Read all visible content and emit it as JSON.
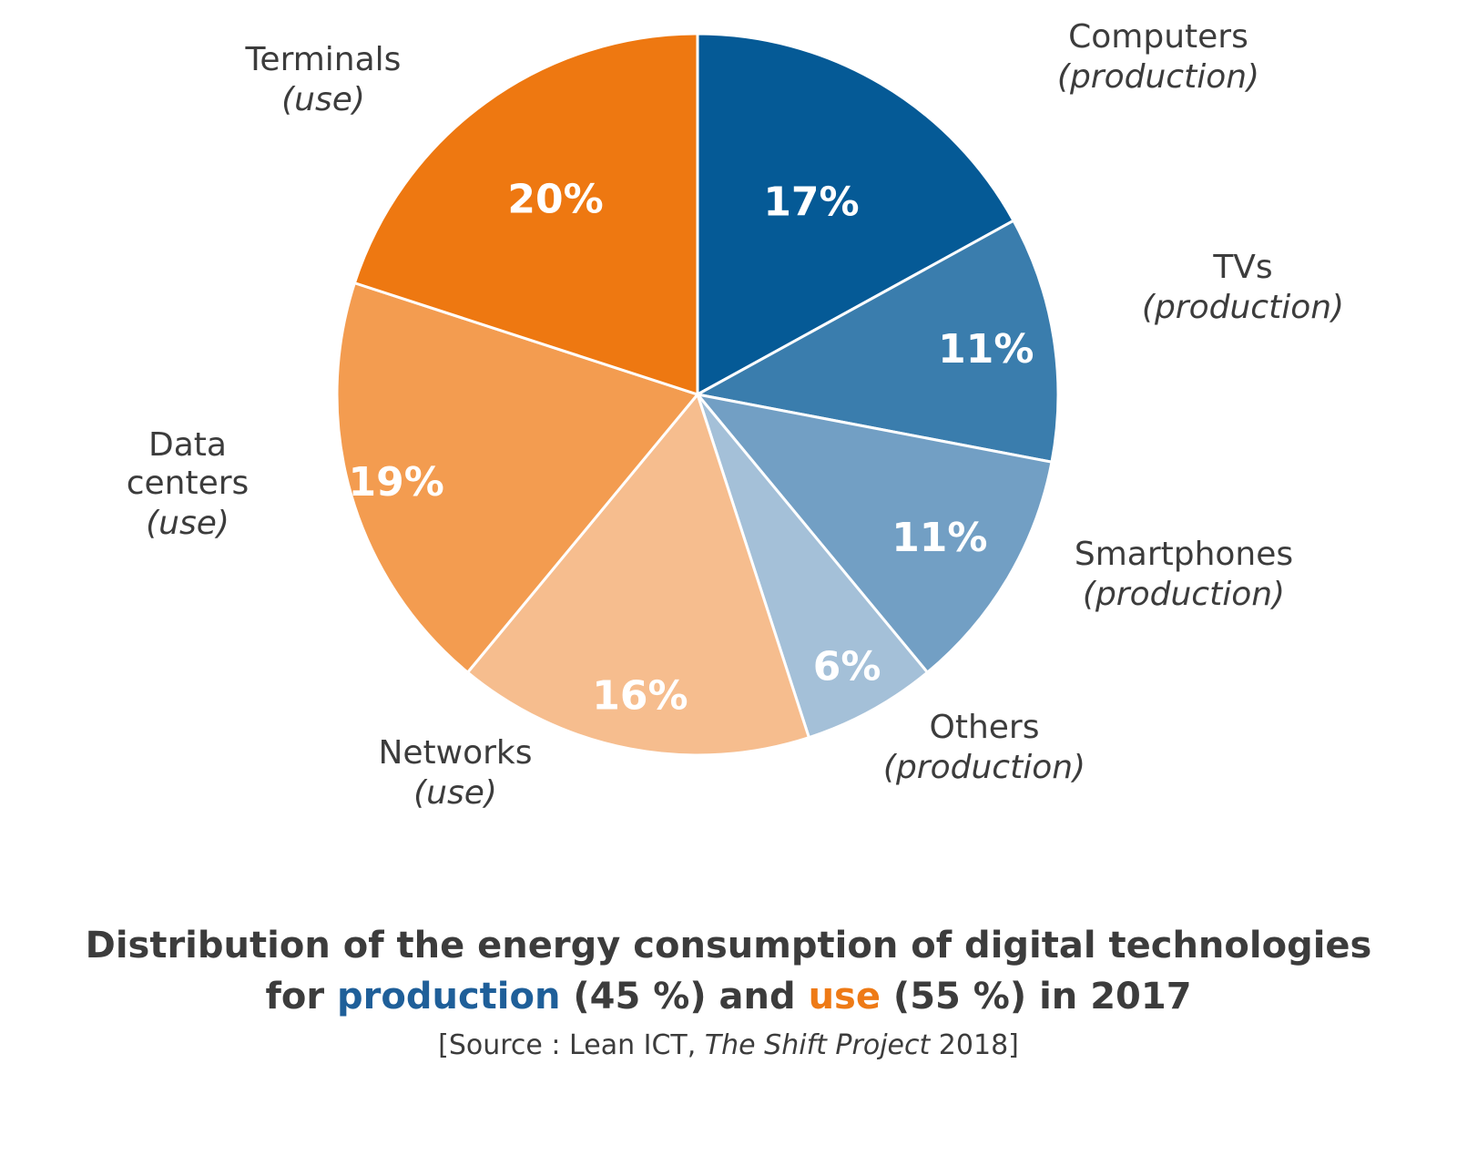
{
  "chart_data": {
    "type": "pie",
    "slices": [
      {
        "label": "Computers",
        "sublabel": "(production)",
        "value": 17,
        "value_label": "17%",
        "color": "#055a96"
      },
      {
        "label": "TVs",
        "sublabel": "(production)",
        "value": 11,
        "value_label": "11%",
        "color": "#3a7dad"
      },
      {
        "label": "Smartphones",
        "sublabel": "(production)",
        "value": 11,
        "value_label": "11%",
        "color": "#729fc4"
      },
      {
        "label": "Others",
        "sublabel": "(production)",
        "value": 6,
        "value_label": "6%",
        "color": "#a4c0d8"
      },
      {
        "label": "Networks",
        "sublabel": "(use)",
        "value": 16,
        "value_label": "16%",
        "color": "#f6bd8e"
      },
      {
        "label": "Data centers",
        "sublabel": "(use)",
        "value": 19,
        "value_label": "19%",
        "color": "#f39c50"
      },
      {
        "label": "Terminals",
        "sublabel": "(use)",
        "value": 20,
        "value_label": "20%",
        "color": "#ee7811"
      }
    ]
  },
  "title": {
    "line1": "Distribution of the energy consumption of digital technologies",
    "line2_prefix": "for ",
    "production_word": "production",
    "line2_middle": " (45 %) and ",
    "use_word": "use",
    "line2_suffix": " (55 %) in 2017"
  },
  "source": {
    "prefix": "[Source : Lean ICT, ",
    "italic": "The Shift Project",
    "suffix": " 2018]"
  },
  "colors": {
    "production": "#1f5f99",
    "use": "#ee7a16",
    "text": "#3c3c3c"
  }
}
